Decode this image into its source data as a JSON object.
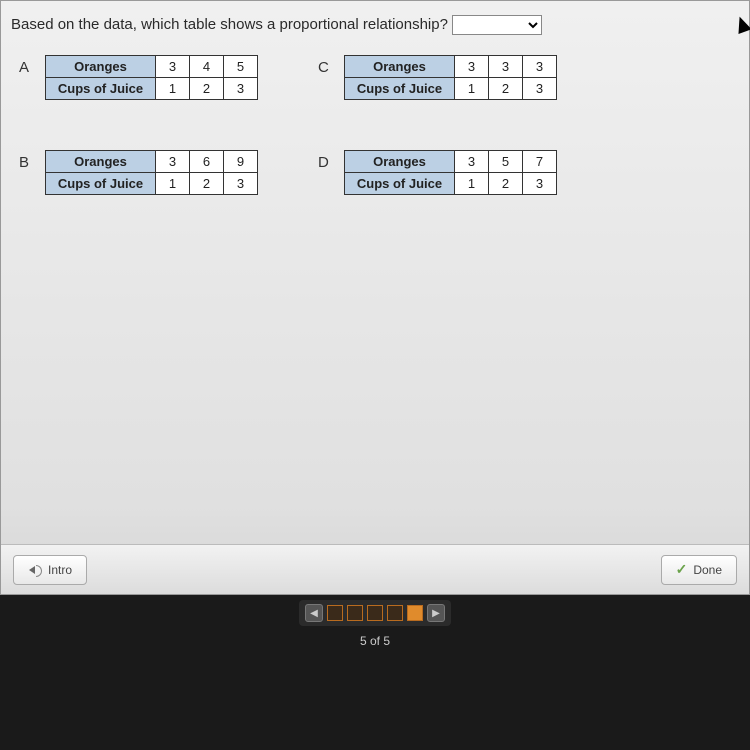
{
  "question": {
    "text": "Based on the data, which table shows a proportional relationship?",
    "dropdown_placeholder": ""
  },
  "tables": {
    "A": {
      "row1_label": "Oranges",
      "row1_vals": [
        "3",
        "4",
        "5"
      ],
      "row2_label": "Cups of Juice",
      "row2_vals": [
        "1",
        "2",
        "3"
      ]
    },
    "B": {
      "row1_label": "Oranges",
      "row1_vals": [
        "3",
        "6",
        "9"
      ],
      "row2_label": "Cups of Juice",
      "row2_vals": [
        "1",
        "2",
        "3"
      ]
    },
    "C": {
      "row1_label": "Oranges",
      "row1_vals": [
        "3",
        "3",
        "3"
      ],
      "row2_label": "Cups of Juice",
      "row2_vals": [
        "1",
        "2",
        "3"
      ]
    },
    "D": {
      "row1_label": "Oranges",
      "row1_vals": [
        "3",
        "5",
        "7"
      ],
      "row2_label": "Cups of Juice",
      "row2_vals": [
        "1",
        "2",
        "3"
      ]
    }
  },
  "letters": {
    "A": "A",
    "B": "B",
    "C": "C",
    "D": "D"
  },
  "footer": {
    "intro_label": "Intro",
    "done_label": "Done"
  },
  "pager": {
    "prev": "◀",
    "next": "▶",
    "total": 5,
    "current": 5,
    "counter": "5 of 5"
  },
  "colors": {
    "header_cell": "#bcd0e4",
    "accent": "#e08b2c",
    "panel_bg": "#eeeeee"
  }
}
